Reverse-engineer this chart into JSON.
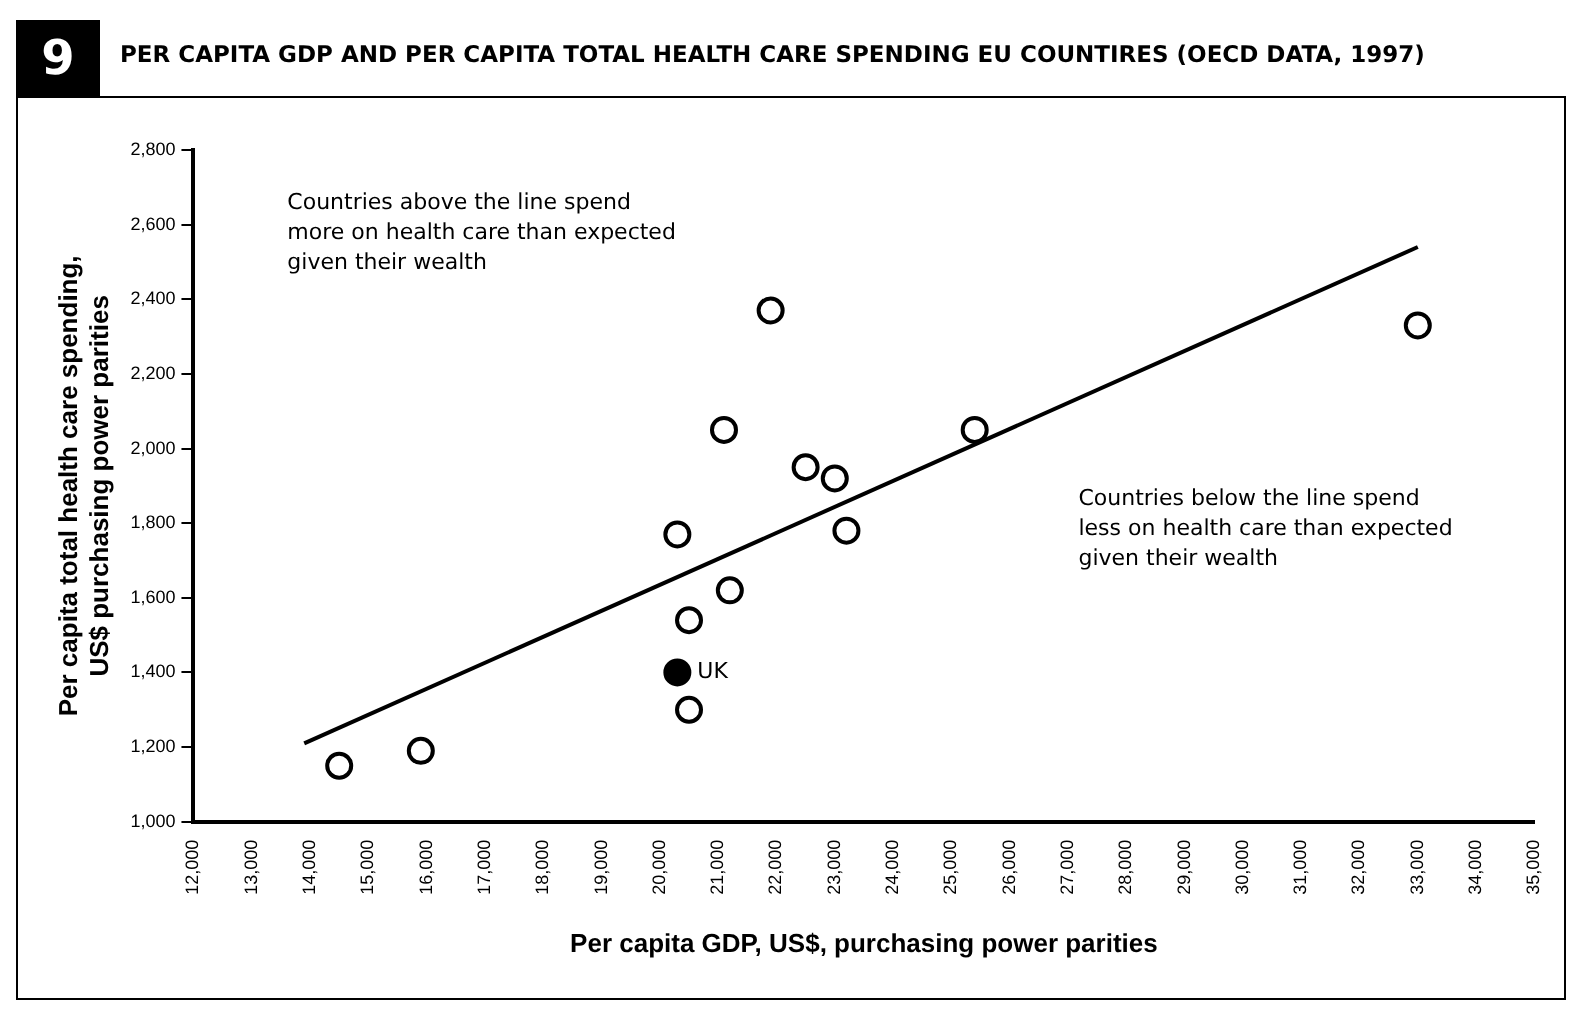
{
  "chart_data": {
    "type": "scatter",
    "title": "PER CAPITA GDP AND PER CAPITA TOTAL HEALTH CARE SPENDING EU COUNTIRES (OECD DATA, 1997)",
    "xlabel": "Per capita GDP, US$, purchasing power parities",
    "ylabel": "Per capita total health care spending,\nUS$ purchasing power parities",
    "annotations": [
      "9",
      "Countries above the line spend\nmore on health care than expected\ngiven their wealth",
      "Countries below the line spend\nless on health care than expected\ngiven their wealth"
    ],
    "series": [
      {
        "color": "#000000",
        "marker": "circle",
        "x": [
          14500,
          15900,
          20300,
          20500,
          20500,
          21200,
          21100,
          21900,
          22500,
          23000,
          23200,
          25400,
          33000
        ],
        "values": [
          1150,
          1190,
          1770,
          1540,
          1300,
          1620,
          2050,
          2370,
          1950,
          1920,
          1780,
          2050,
          2330
        ]
      },
      {
        "name": "UK",
        "color": "#000000",
        "marker": "circle",
        "x": [
          20300
        ],
        "values": [
          1400
        ]
      },
      {
        "type": "line",
        "color": "#000000",
        "x": [
          13900,
          33000
        ],
        "values": [
          1210,
          2540
        ]
      }
    ],
    "xlim": [
      12000,
      35000
    ],
    "xticks": [
      {
        "value": 12000,
        "label": "12,000"
      },
      {
        "value": 13000,
        "label": "13,000"
      },
      {
        "value": 14000,
        "label": "14,000"
      },
      {
        "value": 15000,
        "label": "15,000"
      },
      {
        "value": 16000,
        "label": "16,000"
      },
      {
        "value": 17000,
        "label": "17,000"
      },
      {
        "value": 18000,
        "label": "18,000"
      },
      {
        "value": 19000,
        "label": "19,000"
      },
      {
        "value": 20000,
        "label": "20,000"
      },
      {
        "value": 21000,
        "label": "21,000"
      },
      {
        "value": 22000,
        "label": "22,000"
      },
      {
        "value": 23000,
        "label": "23,000"
      },
      {
        "value": 24000,
        "label": "24,000"
      },
      {
        "value": 25000,
        "label": "25,000"
      },
      {
        "value": 26000,
        "label": "26,000"
      },
      {
        "value": 27000,
        "label": "27,000"
      },
      {
        "value": 28000,
        "label": "28,000"
      },
      {
        "value": 29000,
        "label": "29,000"
      },
      {
        "value": 30000,
        "label": "30,000"
      },
      {
        "value": 31000,
        "label": "31,000"
      },
      {
        "value": 32000,
        "label": "32,000"
      },
      {
        "value": 33000,
        "label": "33,000"
      },
      {
        "value": 34000,
        "label": "34,000"
      },
      {
        "value": 35000,
        "label": "35,000"
      }
    ],
    "ylim": [
      1000,
      2800
    ],
    "yticks": [
      {
        "value": 1000,
        "label": "1,000"
      },
      {
        "value": 1200,
        "label": "1,200"
      },
      {
        "value": 1400,
        "label": "1,400"
      },
      {
        "value": 1600,
        "label": "1,600"
      },
      {
        "value": 1800,
        "label": "1,800"
      },
      {
        "value": 2000,
        "label": "2,000"
      },
      {
        "value": 2200,
        "label": "2,200"
      },
      {
        "value": 2400,
        "label": "2,400"
      },
      {
        "value": 2600,
        "label": "2,600"
      },
      {
        "value": 2800,
        "label": "2,800"
      }
    ],
    "grid": false,
    "legend": false
  }
}
